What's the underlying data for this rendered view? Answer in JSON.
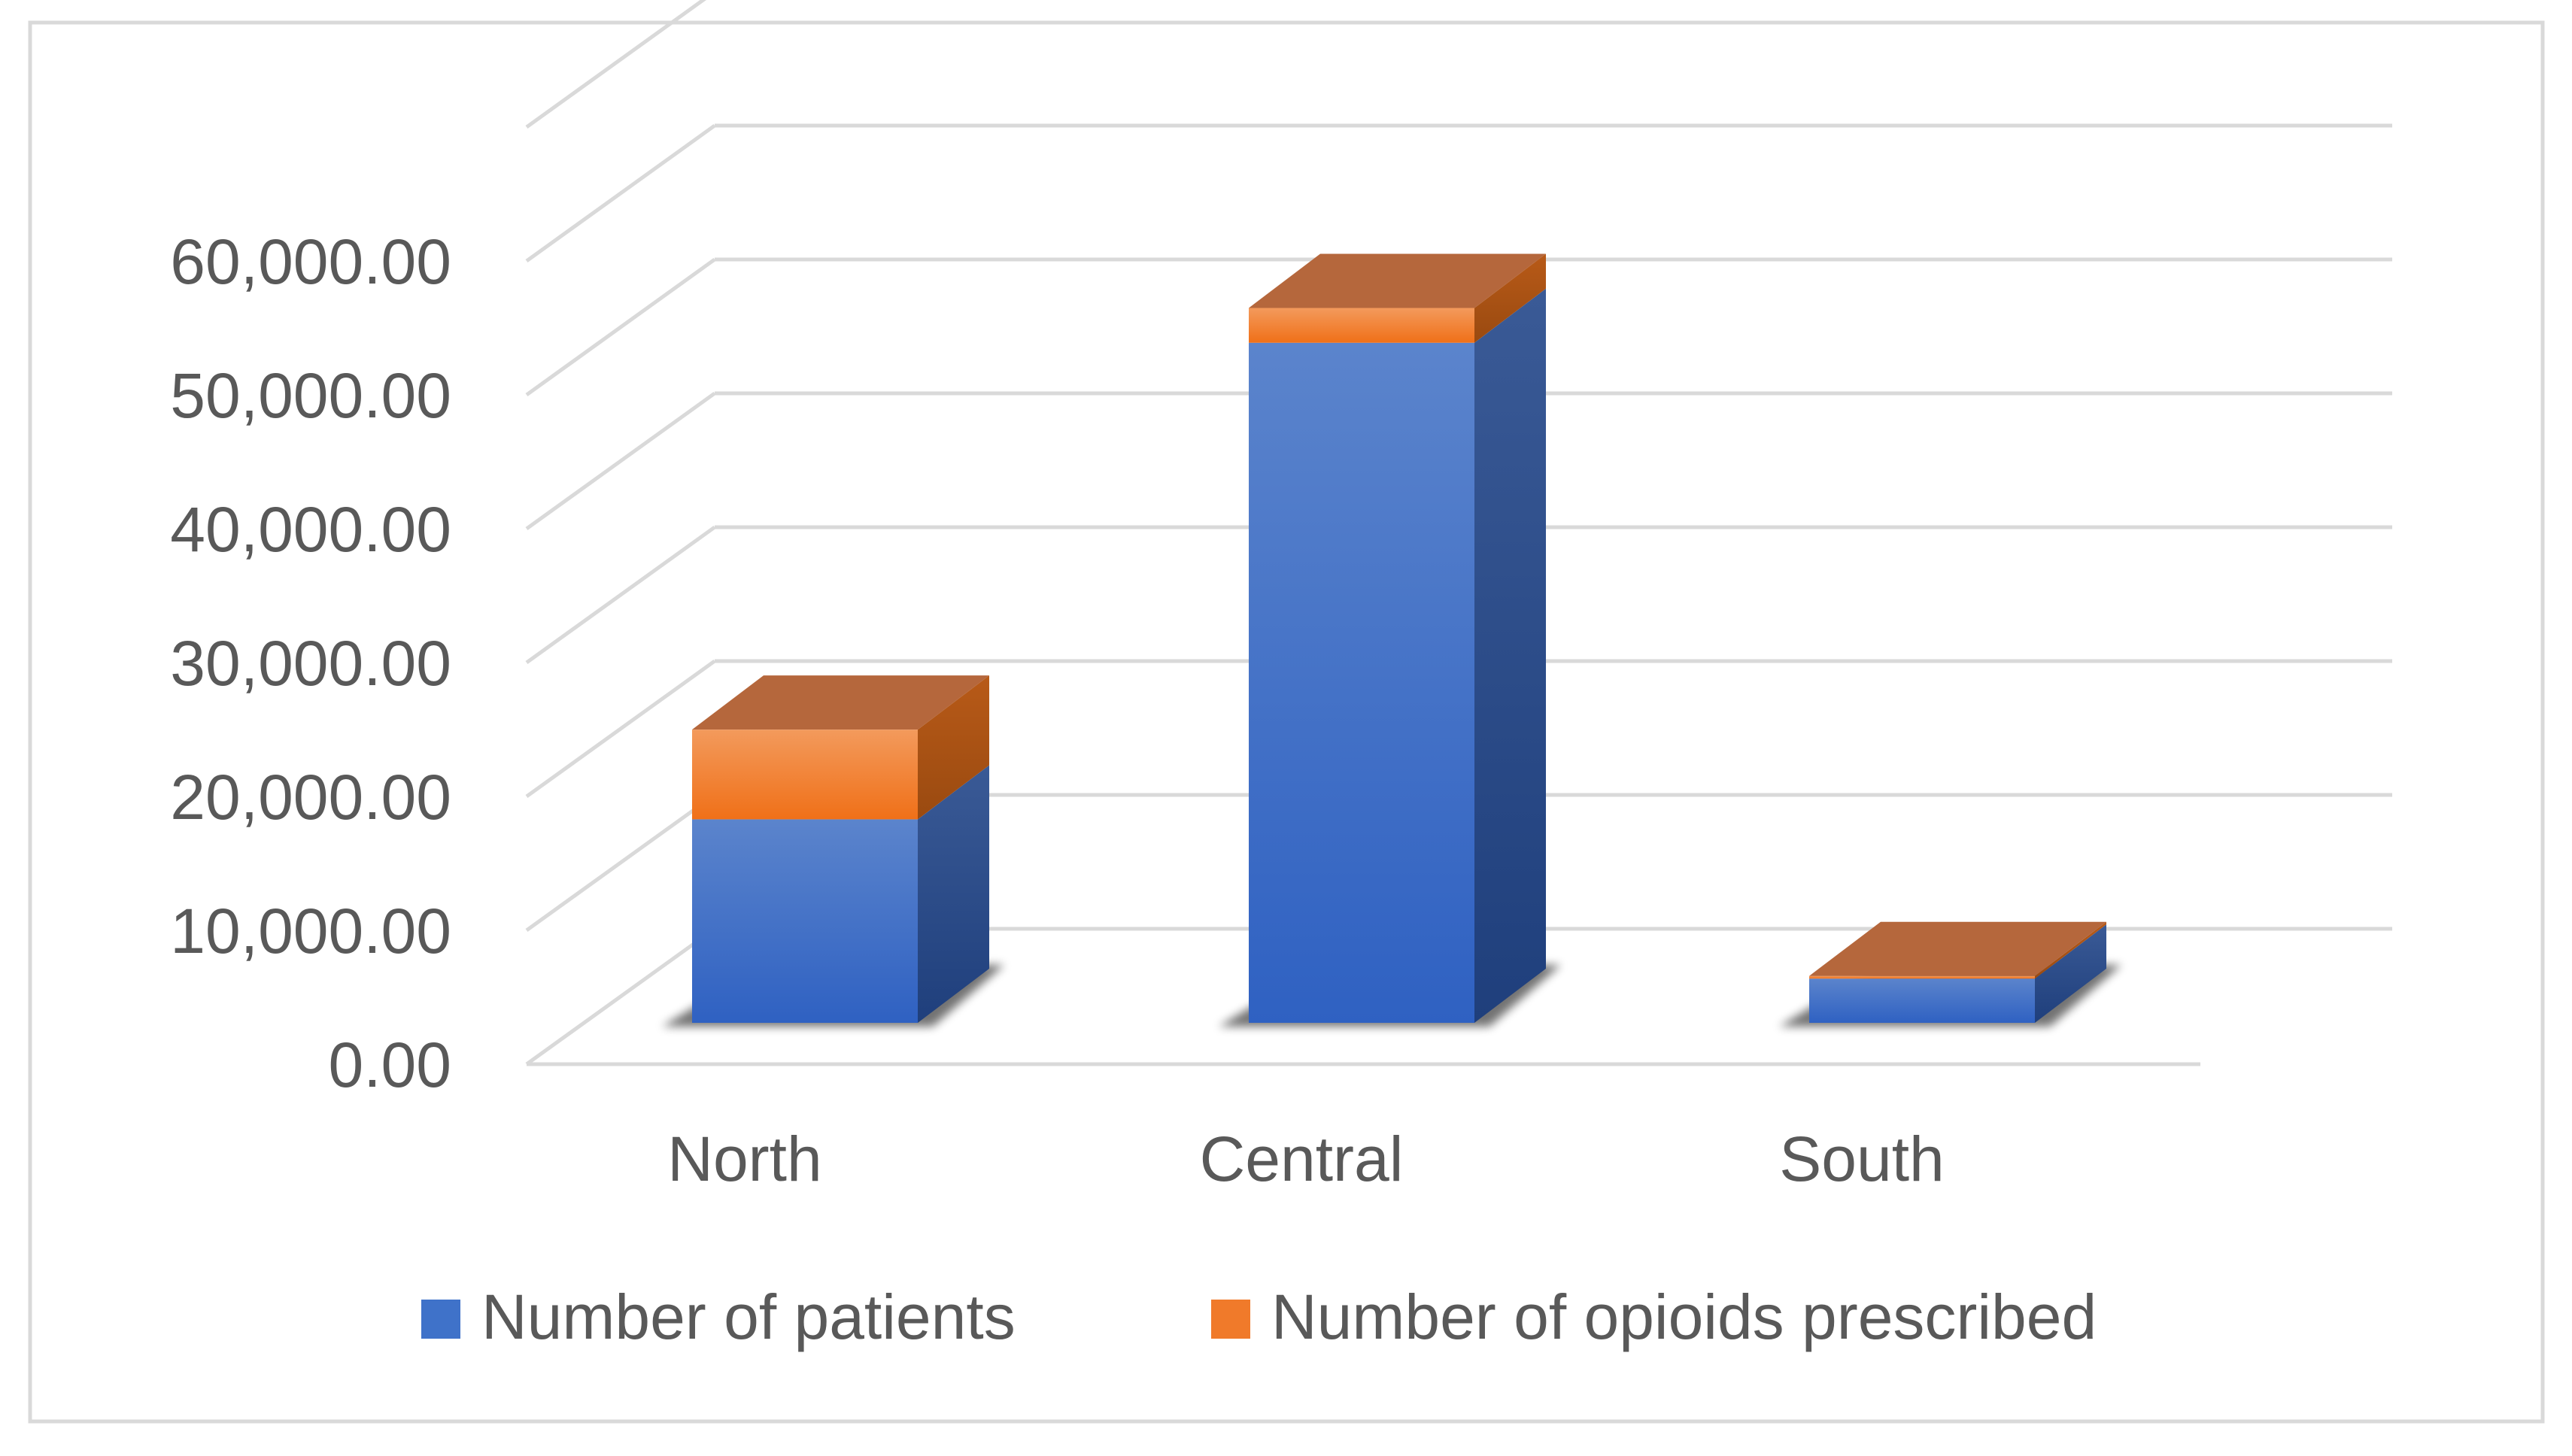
{
  "chart_data": {
    "type": "bar",
    "stacked": true,
    "three_d": true,
    "categories": [
      "North",
      "Central",
      "South"
    ],
    "series": [
      {
        "name": "Number of patients",
        "values": [
          15200,
          50800,
          3300
        ]
      },
      {
        "name": "Number of opioids prescribed",
        "values": [
          6700,
          2600,
          200
        ]
      }
    ],
    "yticks": [
      "0.00",
      "10,000.00",
      "20,000.00",
      "30,000.00",
      "40,000.00",
      "50,000.00",
      "60,000.00"
    ],
    "ylim": [
      0,
      70000
    ],
    "grid": true,
    "legend_position": "bottom",
    "colors": {
      "patients": "#3f72c9",
      "opioids": "#f07a2a",
      "grid": "#d9d9d9",
      "axis_text": "#595959",
      "frame": "#d9d9d9"
    }
  }
}
